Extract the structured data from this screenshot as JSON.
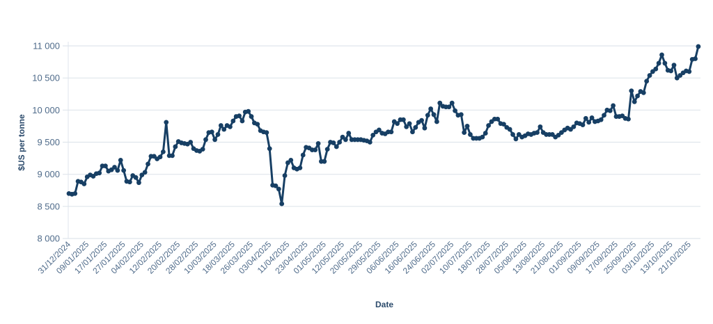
{
  "chart_data": {
    "type": "line",
    "title": "",
    "xlabel": "Date",
    "ylabel": "$US per tonne",
    "ylim": [
      8000,
      11000
    ],
    "y_ticks": [
      8000,
      8500,
      9000,
      9500,
      10000,
      10500,
      11000
    ],
    "y_tick_labels": [
      "8 000",
      "8 500",
      "9 000",
      "9 500",
      "10 000",
      "10 500",
      "11 000"
    ],
    "grid": "horizontal",
    "markers": true,
    "line_color": "#173f64",
    "grid_color": "#dfe5ec",
    "axis_text_color": "#4f6b8a",
    "segments": [
      {
        "date": "31/12/2024",
        "values": [
          8700,
          8690,
          8700,
          8890,
          8880,
          8850
        ]
      },
      {
        "date": "09/01/2025",
        "values": [
          8960,
          8990,
          8970,
          9010,
          9020,
          9130
        ]
      },
      {
        "date": "17/01/2025",
        "values": [
          9130,
          9050,
          9070,
          9110,
          9060,
          9220
        ]
      },
      {
        "date": "27/01/2025",
        "values": [
          9060,
          8890,
          8880,
          8980,
          8950,
          8870
        ]
      },
      {
        "date": "04/02/2025",
        "values": [
          8990,
          9030,
          9160,
          9280,
          9280,
          9240
        ]
      },
      {
        "date": "12/02/2025",
        "values": [
          9270,
          9350,
          9810,
          9290,
          9290,
          9430
        ]
      },
      {
        "date": "20/02/2025",
        "values": [
          9510,
          9490,
          9480,
          9470,
          9500,
          9400
        ]
      },
      {
        "date": "28/02/2025",
        "values": [
          9370,
          9360,
          9390,
          9540,
          9650,
          9660
        ]
      },
      {
        "date": "10/03/2025",
        "values": [
          9540,
          9620,
          9760,
          9700,
          9760,
          9740
        ]
      },
      {
        "date": "18/03/2025",
        "values": [
          9830,
          9900,
          9910,
          9830,
          9970,
          9980
        ]
      },
      {
        "date": "26/03/2025",
        "values": [
          9900,
          9800,
          9780,
          9680,
          9660,
          9650
        ]
      },
      {
        "date": "03/04/2025",
        "values": [
          9400,
          8830,
          8820,
          8770,
          8540,
          8980
        ]
      },
      {
        "date": "11/04/2025",
        "values": [
          9180,
          9220,
          9100,
          9080,
          9100,
          9300
        ]
      },
      {
        "date": "23/04/2025",
        "values": [
          9420,
          9410,
          9380,
          9380,
          9480,
          9200
        ]
      },
      {
        "date": "01/05/2025",
        "values": [
          9200,
          9390,
          9500,
          9490,
          9430,
          9500
        ]
      },
      {
        "date": "12/05/2025",
        "values": [
          9580,
          9540,
          9640,
          9540,
          9540,
          9540
        ]
      },
      {
        "date": "20/05/2025",
        "values": [
          9540,
          9530,
          9520,
          9500,
          9610,
          9660
        ]
      },
      {
        "date": "29/05/2025",
        "values": [
          9690,
          9640,
          9630,
          9660,
          9660,
          9820
        ]
      },
      {
        "date": "06/06/2025",
        "values": [
          9790,
          9850,
          9850,
          9740,
          9790,
          9660
        ]
      },
      {
        "date": "16/06/2025",
        "values": [
          9730,
          9810,
          9840,
          9720,
          9920,
          10020
        ]
      },
      {
        "date": "24/06/2025",
        "values": [
          9930,
          9820,
          10110,
          10060,
          10050,
          10050
        ]
      },
      {
        "date": "02/07/2025",
        "values": [
          10110,
          9990,
          9920,
          9930,
          9650,
          9750
        ]
      },
      {
        "date": "10/07/2025",
        "values": [
          9620,
          9560,
          9560,
          9560,
          9580,
          9640
        ]
      },
      {
        "date": "18/07/2025",
        "values": [
          9760,
          9820,
          9860,
          9860,
          9790,
          9780
        ]
      },
      {
        "date": "28/07/2025",
        "values": [
          9730,
          9700,
          9620,
          9550,
          9620,
          9580
        ]
      },
      {
        "date": "05/08/2025",
        "values": [
          9600,
          9630,
          9620,
          9640,
          9650,
          9740
        ]
      },
      {
        "date": "13/08/2025",
        "values": [
          9650,
          9620,
          9620,
          9620,
          9580,
          9610
        ]
      },
      {
        "date": "21/08/2025",
        "values": [
          9650,
          9690,
          9720,
          9700,
          9740,
          9800
        ]
      },
      {
        "date": "01/09/2025",
        "values": [
          9790,
          9770,
          9870,
          9810,
          9880,
          9820
        ]
      },
      {
        "date": "09/09/2025",
        "values": [
          9830,
          9850,
          9920,
          10000,
          9990,
          10070
        ]
      },
      {
        "date": "17/09/2025",
        "values": [
          9900,
          9900,
          9910,
          9870,
          9860,
          10300
        ]
      },
      {
        "date": "25/09/2025",
        "values": [
          10130,
          10220,
          10290,
          10270,
          10450,
          10540
        ]
      },
      {
        "date": "03/10/2025",
        "values": [
          10600,
          10640,
          10730,
          10860,
          10730,
          10620
        ]
      },
      {
        "date": "13/10/2025",
        "values": [
          10610,
          10700,
          10500,
          10540,
          10580,
          10610
        ]
      },
      {
        "date": "21/10/2025",
        "values": [
          10600,
          10790,
          10800,
          10990
        ]
      }
    ]
  }
}
